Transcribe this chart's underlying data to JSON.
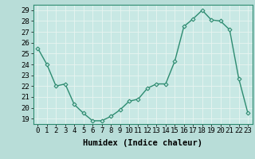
{
  "x": [
    0,
    1,
    2,
    3,
    4,
    5,
    6,
    7,
    8,
    9,
    10,
    11,
    12,
    13,
    14,
    15,
    16,
    17,
    18,
    19,
    20,
    21,
    22,
    23
  ],
  "y": [
    25.5,
    24.0,
    22.0,
    22.2,
    20.3,
    19.5,
    18.8,
    18.8,
    19.2,
    19.8,
    20.6,
    20.8,
    21.8,
    22.2,
    22.2,
    24.3,
    27.5,
    28.2,
    29.0,
    28.1,
    28.0,
    27.2,
    22.7,
    19.5
  ],
  "line_color": "#2d8b70",
  "marker": "D",
  "marker_size": 2.5,
  "bg_color": "#b8ddd8",
  "plot_bg_color": "#c8e8e4",
  "grid_color": "#e8f4f0",
  "xlabel": "Humidex (Indice chaleur)",
  "ylim": [
    18.5,
    29.5
  ],
  "xlim": [
    -0.5,
    23.5
  ],
  "yticks": [
    19,
    20,
    21,
    22,
    23,
    24,
    25,
    26,
    27,
    28,
    29
  ],
  "xticks": [
    0,
    1,
    2,
    3,
    4,
    5,
    6,
    7,
    8,
    9,
    10,
    11,
    12,
    13,
    14,
    15,
    16,
    17,
    18,
    19,
    20,
    21,
    22,
    23
  ],
  "tick_label_fontsize": 6.5,
  "xlabel_fontsize": 7.5,
  "line_width": 1.0
}
